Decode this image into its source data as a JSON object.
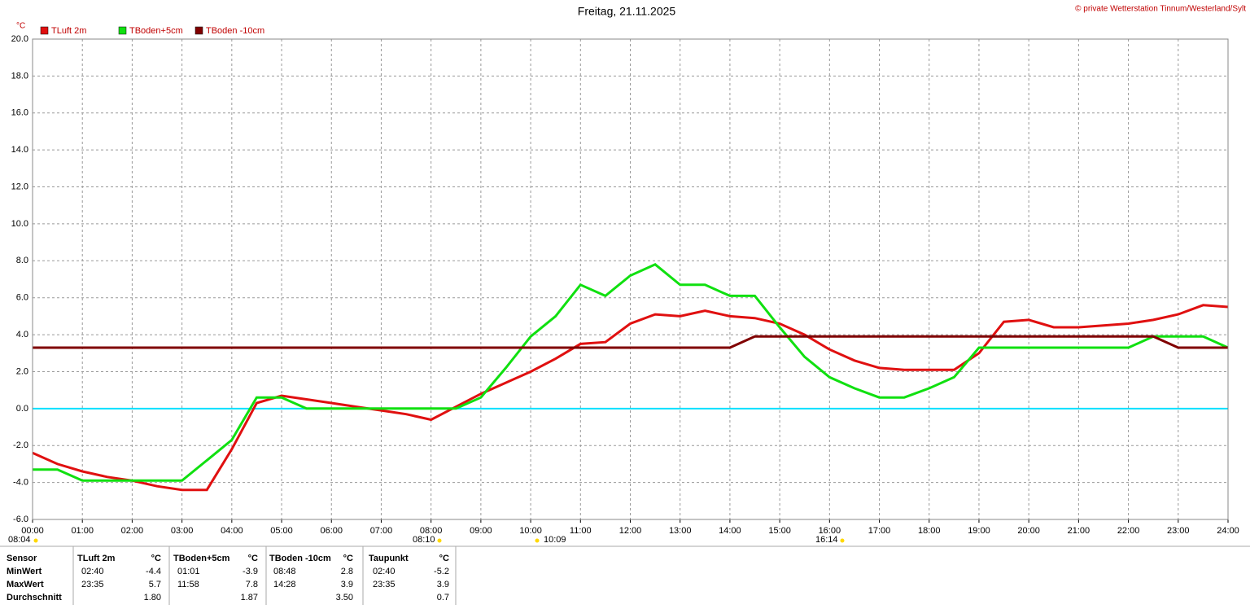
{
  "chart_data": {
    "type": "line",
    "title": "Freitag, 21.11.2025",
    "copyright": "© private Wetterstation Tinnum/Westerland/Sylt",
    "ylabel": "°C",
    "x": [
      0,
      0.5,
      1,
      1.5,
      2,
      2.5,
      3,
      3.5,
      4,
      4.5,
      5,
      5.5,
      6,
      6.5,
      7,
      7.5,
      8,
      8.5,
      9,
      9.5,
      10,
      10.5,
      11,
      11.5,
      12,
      12.5,
      13,
      13.5,
      14,
      14.5,
      15,
      15.5,
      16,
      16.5,
      17,
      17.5,
      18,
      18.5,
      19,
      19.5,
      20,
      20.5,
      21,
      21.5,
      22,
      22.5,
      23,
      23.5,
      24
    ],
    "series": [
      {
        "name": "TLuft 2m",
        "color": "#e01010",
        "values": [
          -2.4,
          -3.0,
          -3.4,
          -3.7,
          -3.9,
          -4.2,
          -4.4,
          -4.4,
          -2.2,
          0.3,
          0.7,
          0.5,
          0.3,
          0.1,
          -0.1,
          -0.3,
          -0.6,
          0.1,
          0.8,
          1.4,
          2.0,
          2.7,
          3.5,
          3.6,
          4.6,
          5.1,
          5.0,
          5.3,
          5.0,
          4.9,
          4.6,
          4.0,
          3.2,
          2.6,
          2.2,
          2.1,
          2.1,
          2.1,
          3.0,
          4.7,
          4.8,
          4.4,
          4.4,
          4.5,
          4.6,
          4.8,
          5.1,
          5.6,
          5.5
        ]
      },
      {
        "name": "TBoden+5cm",
        "color": "#10e010",
        "values": [
          -3.3,
          -3.3,
          -3.9,
          -3.9,
          -3.9,
          -3.9,
          -3.9,
          -2.8,
          -1.7,
          0.6,
          0.6,
          0,
          0,
          0,
          0,
          0,
          0,
          0,
          0.6,
          2.2,
          3.9,
          5.0,
          6.7,
          6.1,
          7.2,
          7.8,
          6.7,
          6.7,
          6.1,
          6.1,
          4.4,
          2.8,
          1.7,
          1.1,
          0.6,
          0.6,
          1.1,
          1.7,
          3.3,
          3.3,
          3.3,
          3.3,
          3.3,
          3.3,
          3.3,
          3.9,
          3.9,
          3.9,
          3.3
        ]
      },
      {
        "name": "TBoden -10cm",
        "color": "#800000",
        "values": [
          3.3,
          3.3,
          3.3,
          3.3,
          3.3,
          3.3,
          3.3,
          3.3,
          3.3,
          3.3,
          3.3,
          3.3,
          3.3,
          3.3,
          3.3,
          3.3,
          3.3,
          3.3,
          3.3,
          3.3,
          3.3,
          3.3,
          3.3,
          3.3,
          3.3,
          3.3,
          3.3,
          3.3,
          3.3,
          3.9,
          3.9,
          3.9,
          3.9,
          3.9,
          3.9,
          3.9,
          3.9,
          3.9,
          3.9,
          3.9,
          3.9,
          3.9,
          3.9,
          3.9,
          3.9,
          3.9,
          3.3,
          3.3,
          3.3
        ]
      }
    ],
    "xlim": [
      0,
      24
    ],
    "xticks": [
      {
        "value": 0,
        "label": "00:00"
      },
      {
        "value": 1,
        "label": "01:00"
      },
      {
        "value": 2,
        "label": "02:00"
      },
      {
        "value": 3,
        "label": "03:00"
      },
      {
        "value": 4,
        "label": "04:00"
      },
      {
        "value": 5,
        "label": "05:00"
      },
      {
        "value": 6,
        "label": "06:00"
      },
      {
        "value": 7,
        "label": "07:00"
      },
      {
        "value": 8,
        "label": "08:00"
      },
      {
        "value": 9,
        "label": "09:00"
      },
      {
        "value": 10,
        "label": "10:00"
      },
      {
        "value": 11,
        "label": "11:00"
      },
      {
        "value": 12,
        "label": "12:00"
      },
      {
        "value": 13,
        "label": "13:00"
      },
      {
        "value": 14,
        "label": "14:00"
      },
      {
        "value": 15,
        "label": "15:00"
      },
      {
        "value": 16,
        "label": "16:00"
      },
      {
        "value": 17,
        "label": "17:00"
      },
      {
        "value": 18,
        "label": "18:00"
      },
      {
        "value": 19,
        "label": "19:00"
      },
      {
        "value": 20,
        "label": "20:00"
      },
      {
        "value": 21,
        "label": "21:00"
      },
      {
        "value": 22,
        "label": "22:00"
      },
      {
        "value": 23,
        "label": "23:00"
      },
      {
        "value": 24,
        "label": "24:00"
      }
    ],
    "ylim": [
      -6,
      20
    ],
    "yticks": [
      {
        "value": -6,
        "label": "-6.0"
      },
      {
        "value": -4,
        "label": "-4.0"
      },
      {
        "value": -2,
        "label": "-2.0"
      },
      {
        "value": 0,
        "label": "0.0"
      },
      {
        "value": 2,
        "label": "2.0"
      },
      {
        "value": 4,
        "label": "4.0"
      },
      {
        "value": 6,
        "label": "6.0"
      },
      {
        "value": 8,
        "label": "8.0"
      },
      {
        "value": 10,
        "label": "10.0"
      },
      {
        "value": 12,
        "label": "12.0"
      },
      {
        "value": 14,
        "label": "14.0"
      },
      {
        "value": 16,
        "label": "16.0"
      },
      {
        "value": 18,
        "label": "18.0"
      },
      {
        "value": 20,
        "label": "20.0"
      }
    ],
    "grid": true,
    "zero_line_color": "#00e0ff",
    "markers": [
      "08:04",
      "08:10",
      "10:09",
      "16:14"
    ]
  },
  "table": {
    "header": [
      "Sensor",
      "TLuft 2m",
      "°C",
      "TBoden+5cm",
      "°C",
      "TBoden -10cm",
      "°C",
      "Taupunkt",
      "°C"
    ],
    "rows": [
      [
        "MinWert",
        "02:40",
        "-4.4",
        "01:01",
        "-3.9",
        "08:48",
        "2.8",
        "02:40",
        "-5.2"
      ],
      [
        "MaxWert",
        "23:35",
        "5.7",
        "11:58",
        "7.8",
        "14:28",
        "3.9",
        "23:35",
        "3.9"
      ],
      [
        "Durchschnitt",
        null,
        "1.80",
        null,
        "1.87",
        null,
        "3.50",
        null,
        "0.7"
      ]
    ]
  }
}
